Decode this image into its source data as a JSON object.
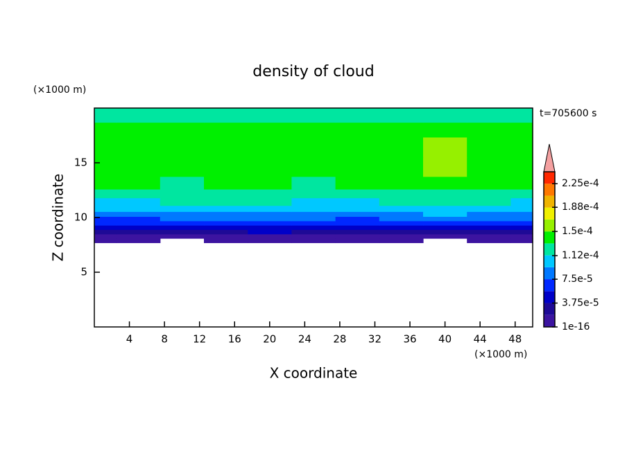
{
  "chart_data": {
    "type": "contour",
    "title": "density of cloud",
    "x_label": "X coordinate",
    "y_label": "Z coordinate",
    "x_unit": "(×1000 m)",
    "y_unit": "(×1000 m)",
    "annotation": "t=705600 s",
    "xlim": [
      0,
      50
    ],
    "ylim": [
      0,
      20
    ],
    "xticks": [
      4,
      8,
      12,
      16,
      20,
      24,
      28,
      32,
      36,
      40,
      44,
      48
    ],
    "yticks": [
      5,
      10,
      15
    ],
    "x": [
      0,
      5,
      10,
      15,
      20,
      25,
      30,
      35,
      40,
      45,
      50
    ],
    "y": [
      7.9,
      8.3,
      8.7,
      9.1,
      9.5,
      9.9,
      10.3,
      10.8,
      11.4,
      12.2,
      13,
      14.5,
      16.5,
      18.2,
      19.2,
      19.8
    ],
    "z": [
      [
        5e-06,
        5e-06,
        null,
        5e-06,
        5e-06,
        5e-06,
        5e-06,
        5e-06,
        null,
        5e-06,
        5e-06
      ],
      [
        1.2e-05,
        1.2e-05,
        1.2e-05,
        1.2e-05,
        1.2e-05,
        1.2e-05,
        1.2e-05,
        1.2e-05,
        1.2e-05,
        1.2e-05,
        1.2e-05
      ],
      [
        2.5e-05,
        2.5e-05,
        3e-05,
        3.5e-05,
        4e-05,
        3e-05,
        2.5e-05,
        2.5e-05,
        3e-05,
        3.5e-05,
        2.5e-05
      ],
      [
        4e-05,
        4.5e-05,
        4.5e-05,
        5e-05,
        5.5e-05,
        4.5e-05,
        4e-05,
        4.5e-05,
        5e-05,
        5e-05,
        4.5e-05
      ],
      [
        6e-05,
        6e-05,
        6.5e-05,
        6.5e-05,
        7e-05,
        6e-05,
        6e-05,
        6.5e-05,
        6.5e-05,
        7e-05,
        6e-05
      ],
      [
        7.2e-05,
        7.2e-05,
        7.8e-05,
        7.8e-05,
        8e-05,
        7.6e-05,
        7.4e-05,
        7.8e-05,
        8e-05,
        8e-05,
        7.6e-05
      ],
      [
        8.5e-05,
        8.5e-05,
        9e-05,
        9e-05,
        9.2e-05,
        8.8e-05,
        8.6e-05,
        9e-05,
        9.5e-05,
        9e-05,
        8.8e-05
      ],
      [
        0.0001,
        0.0001,
        0.000102,
        0.0001,
        0.000102,
        0.0001,
        0.0001,
        0.000102,
        0.000105,
        0.0001,
        0.0001
      ],
      [
        0.00011,
        0.00011,
        0.000114,
        0.000114,
        0.000114,
        0.00011,
        0.00011,
        0.000114,
        0.000116,
        0.000114,
        0.00011
      ],
      [
        0.00012,
        0.000122,
        0.000122,
        0.00012,
        0.000122,
        0.00012,
        0.000122,
        0.000122,
        0.000125,
        0.000122,
        0.00012
      ],
      [
        0.000135,
        0.000135,
        0.000128,
        0.000135,
        0.000135,
        0.000128,
        0.000135,
        0.000135,
        0.00014,
        0.000135,
        0.000135
      ],
      [
        0.00014,
        0.000142,
        0.00014,
        0.00014,
        0.000142,
        0.000145,
        0.00014,
        0.000142,
        0.000152,
        0.000145,
        0.00014
      ],
      [
        0.000142,
        0.000142,
        0.000142,
        0.000142,
        0.000145,
        0.000142,
        0.000142,
        0.000145,
        0.000155,
        0.000145,
        0.000142
      ],
      [
        0.000138,
        0.000138,
        0.000138,
        0.000138,
        0.00014,
        0.000138,
        0.000138,
        0.000138,
        0.00014,
        0.000138,
        0.000138
      ],
      [
        0.000125,
        0.000125,
        0.000125,
        0.000125,
        0.00013,
        0.000125,
        0.000125,
        0.000125,
        0.000128,
        0.000125,
        0.000125
      ],
      [
        0.00012,
        0.00012,
        0.00012,
        0.00012,
        0.00012,
        0.00012,
        0.00012,
        0.00012,
        0.00012,
        0.00012,
        0.00012
      ]
    ],
    "levels": [
      0,
      1.875e-05,
      3.75e-05,
      5.625e-05,
      7.5e-05,
      9.375e-05,
      0.0001125,
      0.00013125,
      0.00015,
      0.00016875,
      0.0001875,
      0.00020625,
      0.000225,
      0.00024375
    ],
    "colors": [
      "#3c14a0",
      "#1e0a96",
      "#0000c8",
      "#0028ff",
      "#0078ff",
      "#00c8ff",
      "#00e6a0",
      "#00f000",
      "#96f000",
      "#f0f000",
      "#f0b400",
      "#ff7800",
      "#ff2800"
    ],
    "extend_color": "#f4a0a0",
    "colorbar_ticks": [
      1e-16,
      {
        "value": 3.75e-05,
        "label": "3.75e-5"
      },
      {
        "value": 7.5e-05,
        "label": "7.5e-5"
      },
      {
        "value": 0.000112,
        "label": "1.12e-4"
      },
      {
        "value": 0.00015,
        "label": "1.5e-4"
      },
      {
        "value": 0.000188,
        "label": "1.88e-4"
      },
      {
        "value": 0.000225,
        "label": "2.25e-4"
      }
    ]
  }
}
